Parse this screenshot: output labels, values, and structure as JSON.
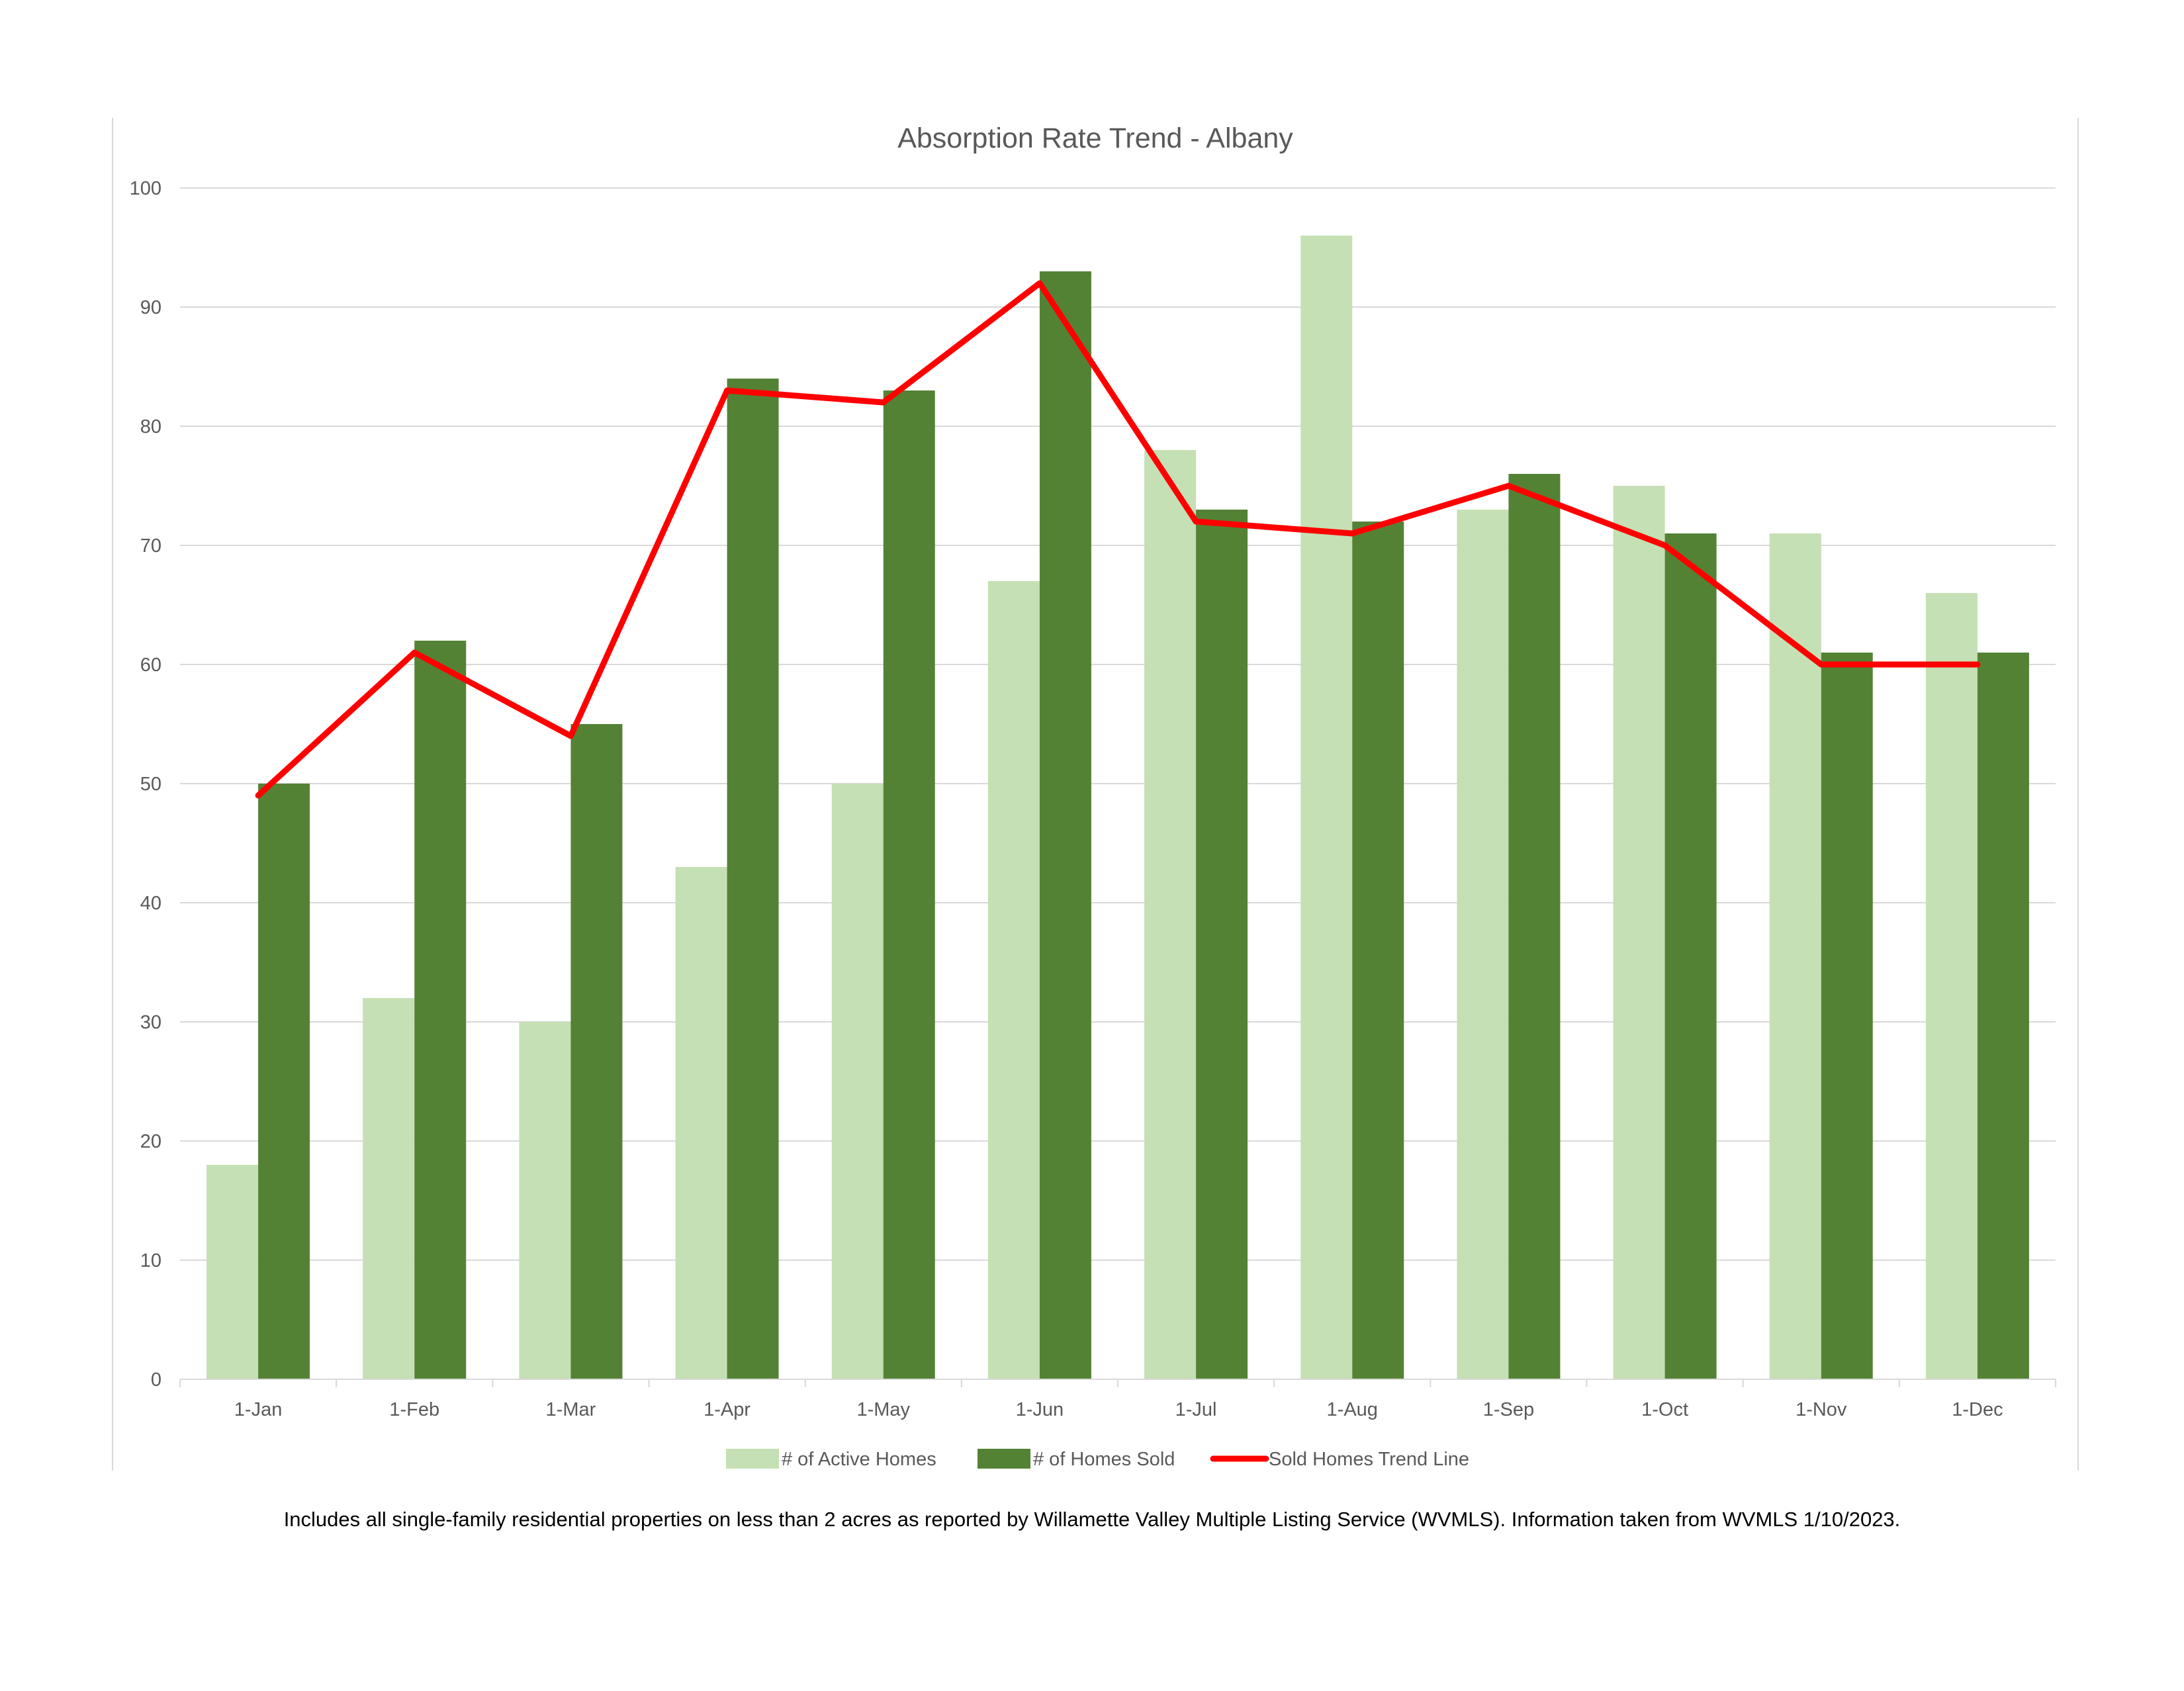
{
  "chart_data": {
    "type": "bar",
    "title": "Absorption Rate Trend - Albany",
    "xlabel": "",
    "ylabel": "",
    "ylim": [
      0,
      100
    ],
    "yticks": [
      0,
      10,
      20,
      30,
      40,
      50,
      60,
      70,
      80,
      90,
      100
    ],
    "grid": true,
    "legend_position": "bottom",
    "categories": [
      "1-Jan",
      "1-Feb",
      "1-Mar",
      "1-Apr",
      "1-May",
      "1-Jun",
      "1-Jul",
      "1-Aug",
      "1-Sep",
      "1-Oct",
      "1-Nov",
      "1-Dec"
    ],
    "series": [
      {
        "name": "# of Active Homes",
        "type": "bar",
        "color": "#c5e0b4",
        "values": [
          18,
          32,
          30,
          43,
          50,
          67,
          78,
          96,
          73,
          75,
          71,
          66
        ]
      },
      {
        "name": "# of Homes Sold",
        "type": "bar",
        "color": "#548235",
        "values": [
          50,
          62,
          55,
          84,
          83,
          93,
          73,
          72,
          76,
          71,
          61,
          61
        ]
      },
      {
        "name": "Sold Homes Trend Line",
        "type": "line",
        "color": "#ff0000",
        "values": [
          49,
          61,
          54,
          83,
          82,
          92,
          72,
          71,
          75,
          70,
          60,
          60
        ]
      }
    ]
  },
  "footnote": "Includes all single-family residential properties on less than 2 acres as reported by Willamette Valley Multiple Listing Service (WVMLS). Information taken from WVMLS 1/10/2023."
}
